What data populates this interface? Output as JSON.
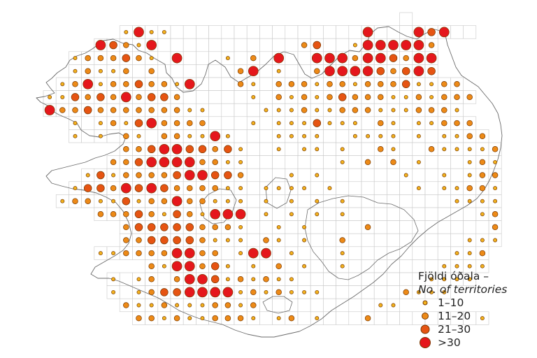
{
  "legend": {
    "title": "Fjöldi óðala –",
    "subtitle": "No. of territories",
    "classes": [
      {
        "label": "1–10",
        "color": "#f2b21d"
      },
      {
        "label": "11–20",
        "color": "#ed8a17"
      },
      {
        "label": "21–30",
        "color": "#e65412"
      },
      {
        "label": ">30",
        "color": "#e5171c"
      }
    ]
  },
  "map_data": {
    "grid": {
      "columns": 36,
      "rows": 24
    },
    "cells": [
      "............................X.......",
      "......1111...............4...434.0..",
      "....43212...........23..1444442.....",
      "..1222321.2...1.2.4..4442443244.....",
      "..12112.2......24.1..2444432343.....",
      ".12412232212...21.222122122231122...",
      "11323242332.....1.2121232221121222..",
      "4223222222211....1112112221112221...",
      "..1.121322222...1.1113111.21.11222..",
      "..1.1.21.221141...1111..1111.1.1122.",
      "......2233233231..1.11.1..21..211112",
      ".....22344442211.......1.2.2.1...121",
      "...1312222334332...1.1......1..1.122",
      "..13324343222211.1111.1......1.11221",
      ".122113122422111.1.1.1.1........1111",
      "....222321321121.1.1.1.1..........12",
      "......2333332221..1.1....2.........2",
      "......2233332111.21.1..2.........111",
      "....1122222222.112.1...1........112.",
      "........2111231.1.2.1..1.......1111.",
      ".....1.12.2213121211..........1111..",
      ".....1.123344441212111......2111....",
      "......21121112212.........11........",
      ".......2212112221.12.1...2........1."
    ],
    "large_overrides": [
      [
        1,
        7
      ],
      [
        2,
        8
      ],
      [
        3,
        9
      ],
      [
        3,
        10
      ],
      [
        4,
        10
      ],
      [
        4,
        11
      ],
      [
        5,
        11
      ],
      [
        5,
        12
      ],
      [
        5,
        13
      ],
      [
        5,
        14
      ],
      [
        6,
        12
      ],
      [
        6,
        13
      ],
      [
        6,
        14
      ],
      [
        8,
        8
      ],
      [
        9,
        8
      ],
      [
        10,
        9
      ],
      [
        10,
        10
      ],
      [
        11,
        9
      ],
      [
        11,
        10
      ],
      [
        12,
        11
      ],
      [
        12,
        12
      ],
      [
        15,
        13
      ],
      [
        15,
        14
      ],
      [
        15,
        15
      ],
      [
        18,
        16
      ],
      [
        18,
        17
      ],
      [
        18,
        18
      ],
      [
        19,
        17
      ],
      [
        18,
        10
      ],
      [
        18,
        11
      ],
      [
        19,
        10
      ],
      [
        19,
        11
      ],
      [
        20,
        11
      ],
      [
        20,
        12
      ],
      [
        25,
        1
      ],
      [
        26,
        1
      ],
      [
        25,
        2
      ],
      [
        26,
        2
      ],
      [
        27,
        2
      ],
      [
        28,
        3
      ],
      [
        29,
        3
      ],
      [
        30,
        3
      ],
      [
        31,
        1
      ],
      [
        31,
        3
      ],
      [
        31,
        4
      ],
      [
        32,
        4
      ],
      [
        30,
        4
      ],
      [
        26,
        4
      ],
      [
        25,
        4
      ]
    ]
  }
}
